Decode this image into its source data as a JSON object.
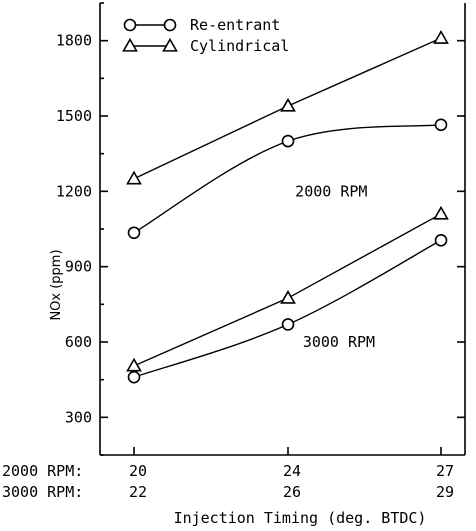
{
  "chart_data": {
    "type": "line",
    "xlabel": "Injection Timing (deg. BTDC)",
    "ylabel": "NOx (ppm)",
    "xlim": [
      0,
      2
    ],
    "ylim": [
      150,
      1950
    ],
    "y_ticks": [
      300,
      600,
      900,
      1200,
      1500,
      1800
    ],
    "tick_label_rows": [
      {
        "label": "2000 RPM",
        "values": [
          "20",
          "24",
          "27"
        ]
      },
      {
        "label": "3000 RPM",
        "values": [
          "22",
          "26",
          "29"
        ]
      }
    ],
    "categories_index": [
      0,
      1,
      2
    ],
    "legend": {
      "position": "top-left",
      "entries": [
        {
          "name": "Re-entrant",
          "marker": "circle"
        },
        {
          "name": "Cylindrical",
          "marker": "triangle"
        }
      ]
    },
    "annotations": [
      {
        "text": "2000 RPM",
        "x": 1.05,
        "y": 1180
      },
      {
        "text": "3000 RPM",
        "x": 1.1,
        "y": 580
      }
    ],
    "series": [
      {
        "name": "Cylindrical",
        "group": "2000 RPM",
        "marker": "triangle",
        "values": [
          1250,
          1540,
          1810
        ]
      },
      {
        "name": "Re-entrant",
        "group": "2000 RPM",
        "marker": "circle",
        "values": [
          1035,
          1400,
          1465
        ]
      },
      {
        "name": "Cylindrical",
        "group": "3000 RPM",
        "marker": "triangle",
        "values": [
          505,
          775,
          1110
        ]
      },
      {
        "name": "Re-entrant",
        "group": "3000 RPM",
        "marker": "circle",
        "values": [
          460,
          670,
          1005
        ]
      }
    ],
    "grid": false
  }
}
